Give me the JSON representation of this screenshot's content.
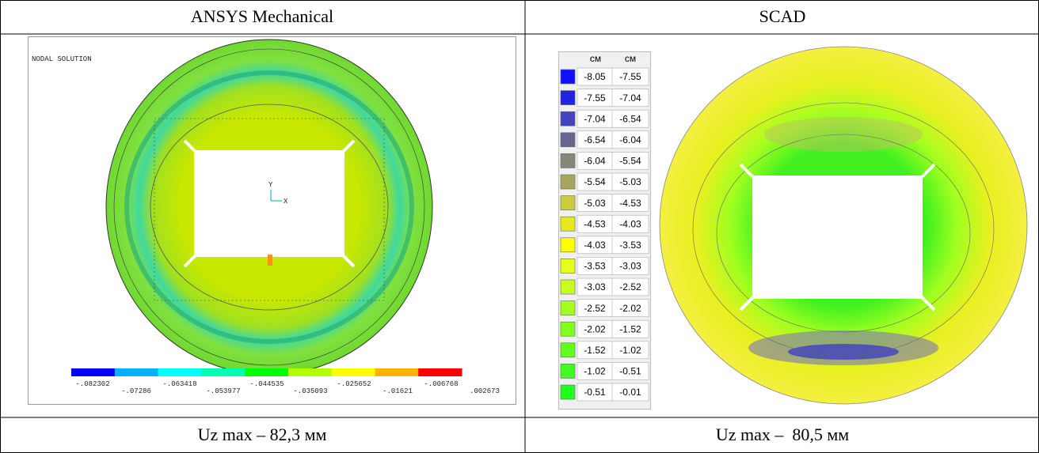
{
  "table": {
    "header": [
      "ANSYS Mechanical",
      "SCAD"
    ],
    "footer": [
      "Uz max – 82,3 мм",
      "Uz max –  80,5 мм"
    ]
  },
  "ansys": {
    "title": "NODAL SOLUTION",
    "axis_x": "X",
    "axis_y": "Y",
    "legend": {
      "colors": [
        "#0000ff",
        "#00b2ff",
        "#00ffff",
        "#00ffb2",
        "#00ff00",
        "#b2ff00",
        "#ffff00",
        "#ffb200",
        "#ff0000"
      ],
      "labels": [
        "-.082302",
        "-.07286",
        "-.063418",
        "-.053977",
        "-.044535",
        "-.035093",
        "-.025652",
        "-.01621",
        "-.006768",
        ".002673"
      ]
    }
  },
  "scad": {
    "units": [
      "см",
      "см"
    ],
    "legend": [
      {
        "color": "#1010ff",
        "from": "-8.05",
        "to": "-7.55"
      },
      {
        "color": "#2222e0",
        "from": "-7.55",
        "to": "-7.04"
      },
      {
        "color": "#4444c0",
        "from": "-7.04",
        "to": "-6.54"
      },
      {
        "color": "#666690",
        "from": "-6.54",
        "to": "-6.04"
      },
      {
        "color": "#858578",
        "from": "-6.04",
        "to": "-5.54"
      },
      {
        "color": "#a8a45a",
        "from": "-5.54",
        "to": "-5.03"
      },
      {
        "color": "#cccc40",
        "from": "-5.03",
        "to": "-4.53"
      },
      {
        "color": "#e8e820",
        "from": "-4.53",
        "to": "-4.03"
      },
      {
        "color": "#ffff00",
        "from": "-4.03",
        "to": "-3.53"
      },
      {
        "color": "#e6ff20",
        "from": "-3.53",
        "to": "-3.03"
      },
      {
        "color": "#c8ff20",
        "from": "-3.03",
        "to": "-2.52"
      },
      {
        "color": "#a2ff20",
        "from": "-2.52",
        "to": "-2.02"
      },
      {
        "color": "#80ff20",
        "from": "-2.02",
        "to": "-1.52"
      },
      {
        "color": "#60ff20",
        "from": "-1.52",
        "to": "-1.02"
      },
      {
        "color": "#40ff20",
        "from": "-1.02",
        "to": "-0.51"
      },
      {
        "color": "#22ff22",
        "from": "-0.51",
        "to": "-0.01"
      }
    ]
  }
}
